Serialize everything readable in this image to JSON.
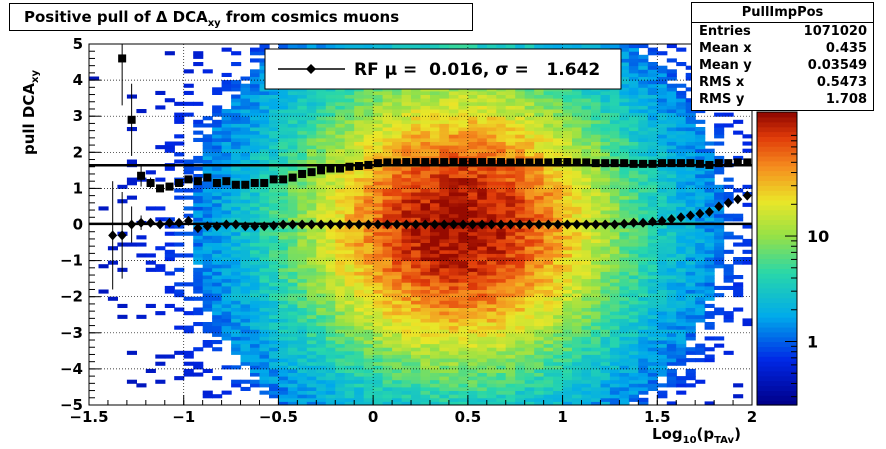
{
  "title": {
    "main": "Positive pull of Δ DCA",
    "sub": "xy",
    "tail": "  from cosmics muons"
  },
  "stats_box": {
    "name": "PullImpPos",
    "rows": [
      {
        "label": "Entries",
        "value": "1071020"
      },
      {
        "label": "Mean x",
        "value": "0.435"
      },
      {
        "label": "Mean y",
        "value": "0.03549"
      },
      {
        "label": "RMS x",
        "value": "0.5473"
      },
      {
        "label": "RMS y",
        "value": "1.708"
      }
    ]
  },
  "legend": {
    "text": "RF μ =  0.016, σ =   1.642"
  },
  "colors": {
    "points": "#000000",
    "frame": "#000000"
  },
  "chart_data": {
    "type": "heatmap",
    "title": "Positive pull of Δ DCA xy from cosmics muons",
    "xlabel": {
      "main": "Log",
      "sub1": "10",
      "mid": "(p",
      "sub2": "TAv",
      "end": ")"
    },
    "ylabel": {
      "main": "pull DCA",
      "sub": "xy"
    },
    "xlim": [
      -1.5,
      2
    ],
    "ylim": [
      -5,
      5
    ],
    "x_ticks": [
      -1.5,
      -1,
      -0.5,
      0,
      0.5,
      1,
      1.5,
      2
    ],
    "x_tick_labels": [
      "−1.5",
      "−1",
      "−0.5",
      "0",
      "0.5",
      "1",
      "1.5",
      "2"
    ],
    "y_ticks": [
      -5,
      -4,
      -3,
      -2,
      -1,
      0,
      1,
      2,
      3,
      4,
      5
    ],
    "y_tick_labels": [
      "−5",
      "−4",
      "−3",
      "−2",
      "−1",
      "0",
      "1",
      "2",
      "3",
      "4",
      "5"
    ],
    "colorbar": {
      "scale": "log",
      "tick_labels": [
        "1",
        "10"
      ],
      "tick_values": [
        1,
        10
      ]
    },
    "grid": true,
    "legend_position": "top-center",
    "density_peak": {
      "x": 0.45,
      "y": 0.0
    },
    "series": [
      {
        "name": "RF",
        "marker": "square",
        "x": [
          -1.325,
          -1.275,
          -1.225,
          -1.175,
          -1.125,
          -1.075,
          -1.025,
          -0.975,
          -0.925,
          -0.875,
          -0.825,
          -0.775,
          -0.725,
          -0.675,
          -0.625,
          -0.575,
          -0.525,
          -0.475,
          -0.425,
          -0.375,
          -0.325,
          -0.275,
          -0.225,
          -0.175,
          -0.125,
          -0.075,
          -0.025,
          0.025,
          0.075,
          0.125,
          0.175,
          0.225,
          0.275,
          0.325,
          0.375,
          0.425,
          0.475,
          0.525,
          0.575,
          0.625,
          0.675,
          0.725,
          0.775,
          0.825,
          0.875,
          0.925,
          0.975,
          1.025,
          1.075,
          1.125,
          1.175,
          1.225,
          1.275,
          1.325,
          1.375,
          1.425,
          1.475,
          1.525,
          1.575,
          1.625,
          1.675,
          1.725,
          1.775,
          1.825,
          1.875,
          1.925,
          1.975
        ],
        "y": [
          4.6,
          2.9,
          1.35,
          1.15,
          1.0,
          1.05,
          1.15,
          1.25,
          1.2,
          1.3,
          1.15,
          1.2,
          1.1,
          1.1,
          1.15,
          1.15,
          1.25,
          1.25,
          1.3,
          1.4,
          1.45,
          1.5,
          1.55,
          1.55,
          1.6,
          1.62,
          1.65,
          1.7,
          1.72,
          1.72,
          1.73,
          1.73,
          1.73,
          1.73,
          1.73,
          1.73,
          1.73,
          1.73,
          1.73,
          1.73,
          1.73,
          1.72,
          1.72,
          1.72,
          1.72,
          1.72,
          1.73,
          1.73,
          1.72,
          1.72,
          1.7,
          1.7,
          1.7,
          1.7,
          1.68,
          1.68,
          1.68,
          1.7,
          1.7,
          1.7,
          1.7,
          1.68,
          1.65,
          1.7,
          1.7,
          1.72,
          1.72
        ],
        "err": [
          1.3,
          1.0,
          0.3,
          0.15,
          0.1,
          0.08,
          0.08,
          0.05,
          0.05,
          0.05,
          0.05,
          0.04,
          0.04,
          0.03,
          0.03,
          0.03,
          0.03,
          0.02,
          0.02,
          0.02,
          0.02,
          0.02,
          0.02,
          0.02,
          0.02,
          0.02,
          0.02,
          0.02,
          0.02,
          0.02,
          0.02,
          0.02,
          0.02,
          0.02,
          0.02,
          0.02,
          0.02,
          0.02,
          0.02,
          0.02,
          0.02,
          0.02,
          0.02,
          0.02,
          0.02,
          0.02,
          0.02,
          0.02,
          0.02,
          0.02,
          0.02,
          0.02,
          0.02,
          0.02,
          0.02,
          0.02,
          0.02,
          0.02,
          0.02,
          0.02,
          0.02,
          0.02,
          0.02,
          0.02,
          0.02,
          0.02,
          0.02
        ]
      },
      {
        "name": "μ",
        "marker": "diamond",
        "x": [
          -1.375,
          -1.325,
          -1.275,
          -1.225,
          -1.175,
          -1.125,
          -1.075,
          -1.025,
          -0.975,
          -0.925,
          -0.875,
          -0.825,
          -0.775,
          -0.725,
          -0.675,
          -0.625,
          -0.575,
          -0.525,
          -0.475,
          -0.425,
          -0.375,
          -0.325,
          -0.275,
          -0.225,
          -0.175,
          -0.125,
          -0.075,
          -0.025,
          0.025,
          0.075,
          0.125,
          0.175,
          0.225,
          0.275,
          0.325,
          0.375,
          0.425,
          0.475,
          0.525,
          0.575,
          0.625,
          0.675,
          0.725,
          0.775,
          0.825,
          0.875,
          0.925,
          0.975,
          1.025,
          1.075,
          1.125,
          1.175,
          1.225,
          1.275,
          1.325,
          1.375,
          1.425,
          1.475,
          1.525,
          1.575,
          1.625,
          1.675,
          1.725,
          1.775,
          1.825,
          1.875,
          1.925,
          1.975
        ],
        "y": [
          -0.3,
          -0.3,
          0.0,
          0.05,
          0.05,
          0.0,
          0.05,
          0.05,
          0.1,
          -0.1,
          -0.05,
          -0.05,
          0.0,
          0.0,
          -0.05,
          -0.05,
          -0.05,
          -0.03,
          0.0,
          0.0,
          0.0,
          0.0,
          0.0,
          0.0,
          0.0,
          0.0,
          0.0,
          0.0,
          0.0,
          0.0,
          0.0,
          0.0,
          0.0,
          0.0,
          0.0,
          0.0,
          0.0,
          0.0,
          0.0,
          0.0,
          0.0,
          0.0,
          0.0,
          0.0,
          0.0,
          0.0,
          0.0,
          0.0,
          0.0,
          0.0,
          0.0,
          0.0,
          0.0,
          0.0,
          0.02,
          0.05,
          0.05,
          0.08,
          0.1,
          0.15,
          0.2,
          0.25,
          0.3,
          0.35,
          0.5,
          0.6,
          0.7,
          0.8
        ],
        "err": [
          1.5,
          1.2,
          0.5,
          0.2,
          0.1,
          0.08,
          0.06,
          0.05,
          0.04,
          0.04,
          0.03,
          0.03,
          0.03,
          0.02,
          0.02,
          0.02,
          0.02,
          0.02,
          0.02,
          0.02,
          0.02,
          0.02,
          0.02,
          0.02,
          0.02,
          0.02,
          0.02,
          0.02,
          0.02,
          0.02,
          0.02,
          0.02,
          0.02,
          0.02,
          0.02,
          0.02,
          0.02,
          0.02,
          0.02,
          0.02,
          0.02,
          0.02,
          0.02,
          0.02,
          0.02,
          0.02,
          0.02,
          0.02,
          0.02,
          0.02,
          0.02,
          0.02,
          0.02,
          0.02,
          0.02,
          0.02,
          0.02,
          0.02,
          0.02,
          0.02,
          0.02,
          0.02,
          0.02,
          0.02,
          0.02,
          0.02,
          0.02,
          0.02
        ]
      }
    ],
    "fit_lines": [
      {
        "name": "σ level",
        "y": 1.642
      },
      {
        "name": "μ level",
        "y": 0.016
      }
    ]
  }
}
